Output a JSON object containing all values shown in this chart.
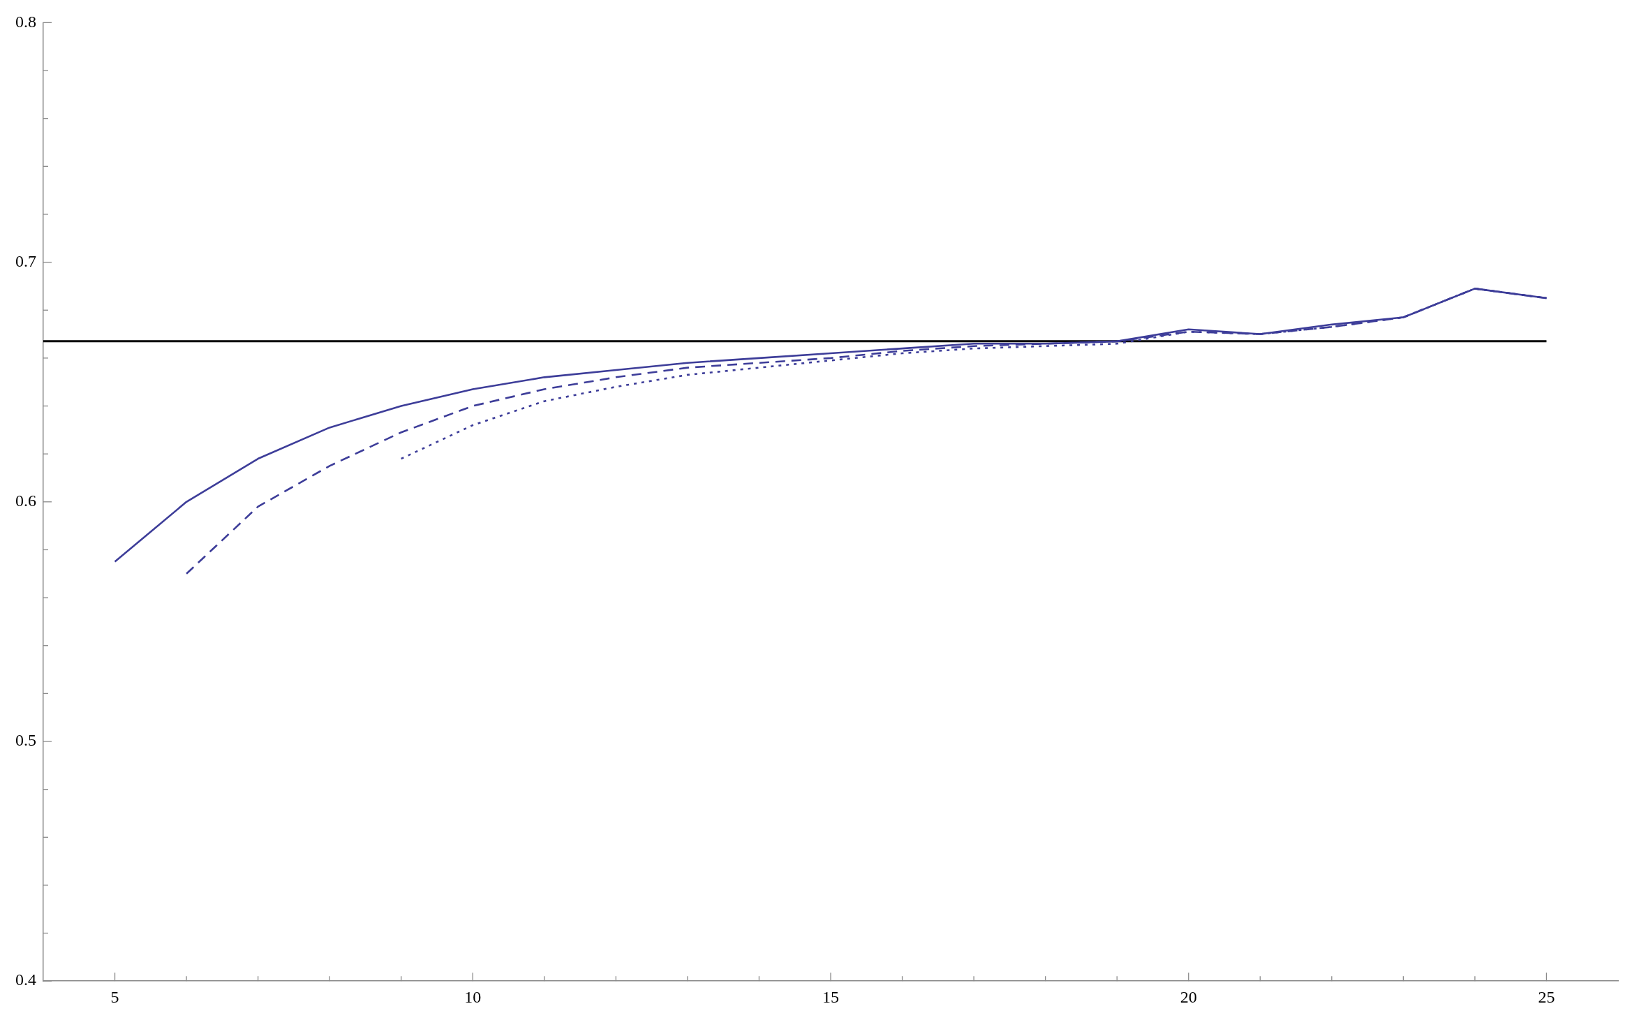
{
  "chart_data": {
    "type": "line",
    "x": [
      5,
      6,
      7,
      8,
      9,
      10,
      11,
      12,
      13,
      14,
      15,
      16,
      17,
      18,
      19,
      20,
      21,
      22,
      23,
      24,
      25
    ],
    "xlim": [
      4,
      26
    ],
    "ylim": [
      0.4,
      0.8
    ],
    "xticks": [
      5,
      {
        "value": 6,
        "label": null
      },
      {
        "value": 7,
        "label": null
      },
      {
        "value": 8,
        "label": null
      },
      {
        "value": 9,
        "label": null
      },
      10,
      {
        "value": 11,
        "label": null
      },
      {
        "value": 12,
        "label": null
      },
      {
        "value": 13,
        "label": null
      },
      {
        "value": 14,
        "label": null
      },
      15,
      {
        "value": 16,
        "label": null
      },
      {
        "value": 17,
        "label": null
      },
      {
        "value": 18,
        "label": null
      },
      {
        "value": 19,
        "label": null
      },
      20,
      {
        "value": 21,
        "label": null
      },
      {
        "value": 22,
        "label": null
      },
      {
        "value": 23,
        "label": null
      },
      {
        "value": 24,
        "label": null
      },
      25
    ],
    "yticks": [
      0.4,
      {
        "value": 0.42,
        "label": null
      },
      {
        "value": 0.44,
        "label": null
      },
      {
        "value": 0.46,
        "label": null
      },
      {
        "value": 0.48,
        "label": null
      },
      0.5,
      {
        "value": 0.52,
        "label": null
      },
      {
        "value": 0.54,
        "label": null
      },
      {
        "value": 0.56,
        "label": null
      },
      {
        "value": 0.58,
        "label": null
      },
      0.6,
      {
        "value": 0.62,
        "label": null
      },
      {
        "value": 0.64,
        "label": null
      },
      {
        "value": 0.66,
        "label": null
      },
      {
        "value": 0.68,
        "label": null
      },
      0.7,
      {
        "value": 0.72,
        "label": null
      },
      {
        "value": 0.74,
        "label": null
      },
      {
        "value": 0.76,
        "label": null
      },
      {
        "value": 0.78,
        "label": null
      },
      0.8
    ],
    "grid": false,
    "series": [
      {
        "color": "#3d3d99",
        "line_style": "solid",
        "values": [
          0.575,
          0.6,
          0.618,
          0.631,
          0.64,
          0.647,
          0.652,
          0.655,
          0.658,
          0.66,
          0.662,
          0.664,
          0.666,
          0.666,
          0.667,
          0.672,
          0.67,
          0.674,
          0.677,
          0.689,
          0.685
        ]
      },
      {
        "color": "#3d3d99",
        "line_style": "dashed",
        "values": [
          null,
          0.57,
          0.598,
          0.615,
          0.629,
          0.64,
          0.647,
          0.652,
          0.656,
          0.658,
          0.66,
          0.663,
          0.665,
          0.666,
          0.667,
          0.671,
          0.67,
          0.673,
          0.677,
          0.689,
          0.685
        ]
      },
      {
        "color": "#3d3d99",
        "line_style": "dotted",
        "values": [
          null,
          null,
          null,
          null,
          0.618,
          0.632,
          0.642,
          0.648,
          0.653,
          0.656,
          0.659,
          0.662,
          0.664,
          0.665,
          0.666,
          0.671,
          0.67,
          0.673,
          0.677,
          0.689,
          0.685
        ]
      },
      {
        "type": "line",
        "x": [
          4,
          25
        ],
        "color": "#000000",
        "line_style": "solid",
        "values": [
          0.667,
          0.667
        ]
      }
    ]
  }
}
